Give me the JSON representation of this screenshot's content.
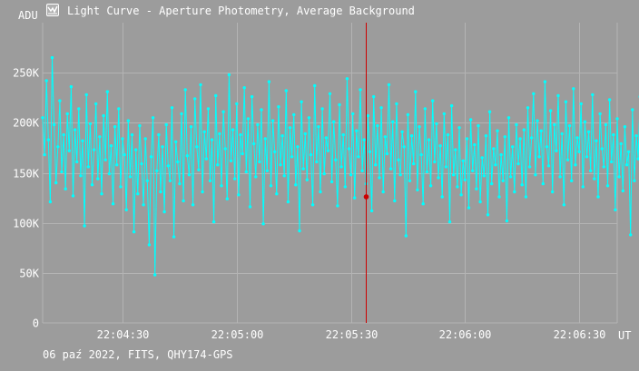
{
  "window": {
    "title": "Light Curve - Aperture Photometry, Average Background",
    "icon": "light-curve-app-icon"
  },
  "footer": {
    "info": "06 paź 2022, FITS, QHY174-GPS"
  },
  "colors": {
    "background": "#9c9c9c",
    "grid": "#b4b4b4",
    "series": "#00ffff",
    "cursor_line": "#cc0000",
    "cursor_marker": "#cc0000",
    "text": "#ffffff"
  },
  "chart_data": {
    "type": "line",
    "ylabel": "ADU",
    "xlabel": "UT",
    "ylim": [
      0,
      300000
    ],
    "xlim": [
      "22:04:09",
      "22:06:40"
    ],
    "y_ticks": [
      {
        "value": 0,
        "label": "0"
      },
      {
        "value": 50000,
        "label": "50K"
      },
      {
        "value": 100000,
        "label": "100K"
      },
      {
        "value": 150000,
        "label": "150K"
      },
      {
        "value": 200000,
        "label": "200K"
      },
      {
        "value": 250000,
        "label": "250K"
      }
    ],
    "x_ticks": [
      {
        "time": "22:04:30",
        "label": "22:04:30"
      },
      {
        "time": "22:05:00",
        "label": "22:05:00"
      },
      {
        "time": "22:05:30",
        "label": "22:05:30"
      },
      {
        "time": "22:06:00",
        "label": "22:06:00"
      },
      {
        "time": "22:06:30",
        "label": "22:06:30"
      }
    ],
    "grid": true,
    "cursor": {
      "time": "22:05:34",
      "value": 126000
    },
    "series": [
      {
        "x_start": "22:04:09",
        "x_step_seconds": 0.5,
        "values": [
          205000,
          168000,
          242000,
          183000,
          121000,
          265000,
          198000,
          140000,
          176000,
          222000,
          151000,
          188000,
          134000,
          209000,
          172000,
          236000,
          127000,
          193000,
          161000,
          214000,
          147000,
          182000,
          97000,
          228000,
          156000,
          199000,
          138000,
          173000,
          219000,
          144000,
          186000,
          129000,
          207000,
          163000,
          231000,
          149000,
          177000,
          119000,
          196000,
          158000,
          214000,
          136000,
          184000,
          168000,
          113000,
          202000,
          146000,
          188000,
          91000,
          173000,
          129000,
          197000,
          159000,
          118000,
          184000,
          142000,
          78000,
          166000,
          205000,
          48000,
          152000,
          188000,
          131000,
          176000,
          111000,
          198000,
          157000,
          142000,
          215000,
          86000,
          181000,
          161000,
          139000,
          209000,
          122000,
          233000,
          167000,
          148000,
          196000,
          118000,
          224000,
          176000,
          153000,
          238000,
          131000,
          191000,
          164000,
          214000,
          142000,
          183000,
          101000,
          227000,
          158000,
          189000,
          137000,
          211000,
          174000,
          124000,
          248000,
          162000,
          193000,
          144000,
          219000,
          128000,
          188000,
          169000,
          235000,
          151000,
          204000,
          116000,
          226000,
          179000,
          146000,
          198000,
          161000,
          213000,
          99000,
          184000,
          152000,
          241000,
          137000,
          202000,
          171000,
          129000,
          216000,
          158000,
          187000,
          147000,
          232000,
          121000,
          195000,
          166000,
          208000,
          138000,
          176000,
          92000,
          221000,
          154000,
          189000,
          143000,
          205000,
          168000,
          118000,
          237000,
          161000,
          196000,
          131000,
          214000,
          149000,
          185000,
          172000,
          229000,
          141000,
          201000,
          163000,
          117000,
          218000,
          156000,
          188000,
          136000,
          244000,
          174000,
          148000,
          209000,
          125000,
          192000,
          166000,
          233000,
          152000,
          183000,
          139000,
          207000,
          171000,
          112000,
          226000,
          158000,
          197000,
          145000,
          215000,
          131000,
          186000,
          169000,
          238000,
          154000,
          201000,
          122000,
          219000,
          163000,
          148000,
          191000,
          176000,
          87000,
          208000,
          142000,
          187000,
          159000,
          231000,
          133000,
          196000,
          168000,
          119000,
          214000,
          151000,
          183000,
          137000,
          222000,
          161000,
          199000,
          145000,
          177000,
          126000,
          209000,
          156000,
          188000,
          101000,
          217000,
          148000,
          173000,
          136000,
          195000,
          128000,
          162000,
          143000,
          184000,
          115000,
          203000,
          152000,
          178000,
          134000,
          197000,
          121000,
          165000,
          147000,
          187000,
          108000,
          211000,
          139000,
          174000,
          158000,
          192000,
          126000,
          168000,
          142000,
          186000,
          102000,
          205000,
          146000,
          176000,
          131000,
          198000,
          159000,
          184000,
          138000,
          193000,
          126000,
          215000,
          156000,
          185000,
          229000,
          148000,
          202000,
          166000,
          192000,
          139000,
          241000,
          176000,
          157000,
          212000,
          131000,
          198000,
          172000,
          227000,
          146000,
          189000,
          118000,
          221000,
          163000,
          197000,
          142000,
          234000,
          158000,
          185000,
          171000,
          219000,
          136000,
          201000,
          166000,
          191000,
          152000,
          228000,
          144000,
          182000,
          126000,
          209000,
          174000,
          156000,
          198000,
          137000,
          223000,
          161000,
          188000,
          113000,
          204000,
          146000,
          179000,
          132000,
          196000,
          158000,
          171000,
          88000,
          213000,
          142000,
          187000,
          164000,
          226000,
          129000,
          194000,
          153000,
          175000,
          108000,
          209000,
          147000,
          183000,
          136000,
          201000,
          161000,
          219000,
          143000,
          186000,
          119000,
          197000,
          156000,
          173000,
          141000,
          211000,
          128000,
          192000,
          163000,
          135000,
          204000,
          151000,
          178000,
          116000,
          198000,
          145000,
          187000,
          167000,
          124000,
          209000,
          158000,
          181000,
          102000,
          196000,
          149000,
          174000,
          137000,
          213000,
          162000,
          188000,
          126000,
          201000,
          154000,
          105000,
          185000,
          144000,
          199000,
          168000,
          131000,
          126000,
          208000,
          159000,
          191000,
          177000,
          146000,
          219000,
          152000,
          138000,
          205000,
          124000,
          226000,
          163000,
          142000,
          211000,
          106000,
          188000,
          157000,
          197000,
          171000,
          134000,
          207000,
          149000,
          181000,
          118000,
          223000,
          158000,
          196000,
          141000,
          176000,
          127000,
          214000,
          165000,
          187000,
          152000,
          231000,
          136000,
          203000,
          172000,
          145000,
          249000,
          161000,
          192000,
          121000,
          217000,
          153000,
          184000,
          168000,
          139000,
          208000,
          147000,
          198000,
          131000,
          227000,
          174000,
          156000,
          193000,
          118000,
          211000,
          162000,
          186000,
          143000,
          236000,
          158000,
          203000,
          128000,
          189000,
          172000,
          149000,
          221000,
          137000,
          196000,
          164000,
          114000,
          208000,
          153000,
          183000,
          141000,
          229000,
          167000,
          192000,
          123000,
          212000,
          158000,
          174000,
          146000,
          203000,
          131000,
          238000,
          162000,
          187000,
          152000,
          216000,
          126000,
          198000,
          169000,
          144000,
          209000,
          72000,
          187000,
          156000,
          227000,
          139000,
          194000,
          166000,
          121000,
          219000,
          151000,
          182000,
          137000,
          205000,
          172000,
          158000,
          232000,
          141000,
          198000,
          126000,
          213000,
          163000,
          88000,
          191000,
          149000,
          176000,
          224000,
          138000,
          201000,
          167000,
          128000,
          215000,
          156000,
          184000,
          143000,
          246000,
          169000,
          197000,
          132000,
          212000,
          158000,
          186000,
          147000,
          223000,
          121000,
          204000,
          171000,
          153000,
          208000,
          97000,
          193000,
          162000,
          138000,
          229000,
          157000,
          184000,
          126000,
          217000,
          148000,
          199000,
          165000,
          142000,
          236000,
          153000,
          189000,
          119000,
          211000,
          172000,
          146000,
          203000,
          137000,
          224000,
          161000,
          188000,
          128000,
          215000,
          154000,
          173000,
          95000,
          206000,
          149000,
          185000,
          168000,
          132000,
          231000,
          157000,
          196000,
          141000,
          212000,
          126000,
          189000,
          163000,
          147000,
          221000,
          136000,
          201000,
          174000,
          158000,
          228000,
          122000,
          194000,
          167000,
          143000,
          209000,
          156000,
          182000,
          131000,
          216000,
          148000,
          197000,
          118000,
          239000,
          162000,
          186000,
          153000,
          205000,
          137000,
          224000,
          171000,
          145000,
          198000,
          126000,
          212000,
          159000,
          184000,
          141000,
          227000,
          57000,
          191000,
          166000,
          136000,
          217000,
          153000,
          188000,
          147000,
          206000,
          128000,
          233000,
          169000,
          157000,
          196000,
          139000,
          214000,
          123000,
          186000,
          162000,
          207000,
          144000,
          251000,
          173000,
          155000,
          198000,
          132000,
          219000,
          161000,
          147000,
          224000,
          137000,
          191000,
          84000,
          212000,
          158000,
          183000,
          126000,
          205000,
          149000,
          238000,
          167000,
          131000,
          196000,
          153000,
          214000,
          141000,
          181000,
          118000,
          226000,
          164000,
          189000,
          136000,
          207000,
          158000,
          175000,
          146000,
          219000,
          129000,
          244000,
          171000,
          153000,
          201000,
          138000,
          186000,
          162000,
          122000,
          214000,
          148000,
          193000,
          167000,
          133000,
          206000,
          142000,
          226000,
          158000,
          185000,
          176000,
          144000,
          211000,
          152000,
          188000,
          134000,
          179000,
          221000,
          162000,
          143000,
          204000,
          156000,
          232000,
          166000,
          187000
        ]
      }
    ]
  }
}
